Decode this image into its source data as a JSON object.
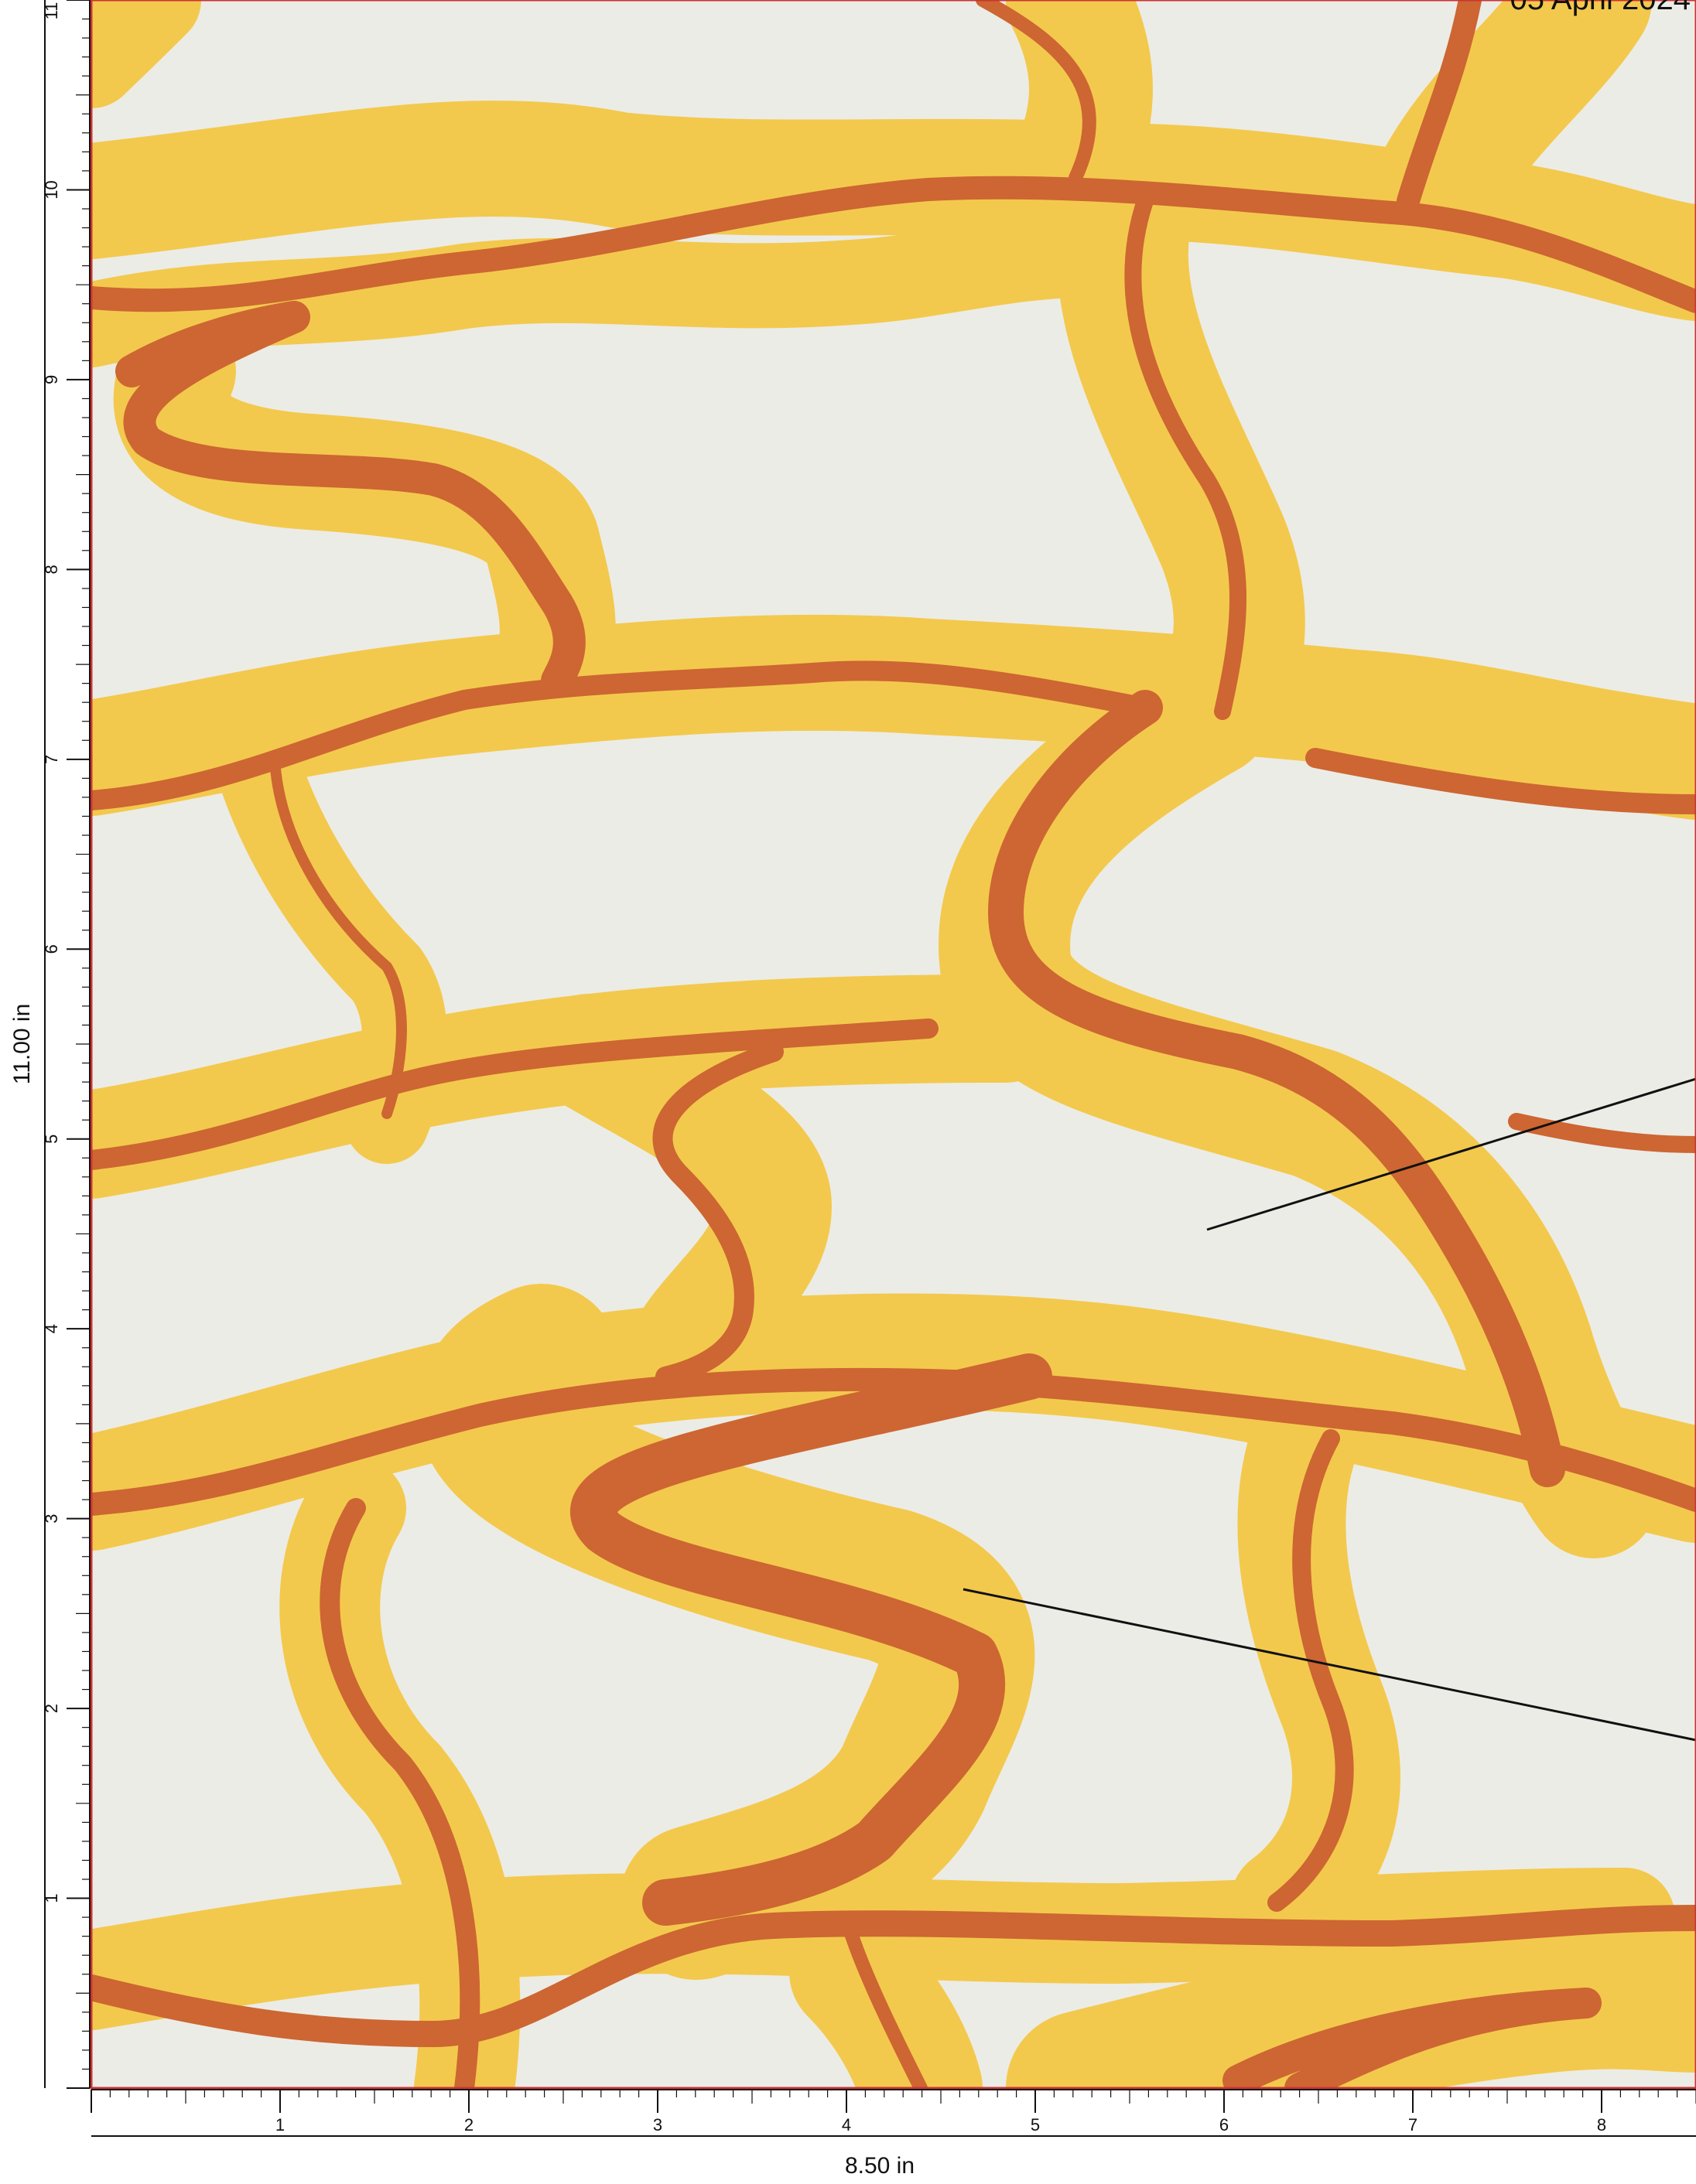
{
  "header": {
    "date": "05 April 2024"
  },
  "page": {
    "width_label": "8.50 in",
    "height_label": "11.00 in"
  },
  "ruler": {
    "x_ticks": [
      "1",
      "2",
      "3",
      "4",
      "5",
      "6",
      "7",
      "8"
    ],
    "y_ticks": [
      "1",
      "2",
      "3",
      "4",
      "5",
      "6",
      "7",
      "8",
      "9",
      "10",
      "11"
    ]
  },
  "colors": {
    "background": "#ecece6",
    "halo": "#f3c94d",
    "channel": "#cd6632",
    "frame": "#cc3333",
    "ink": "#111111"
  }
}
